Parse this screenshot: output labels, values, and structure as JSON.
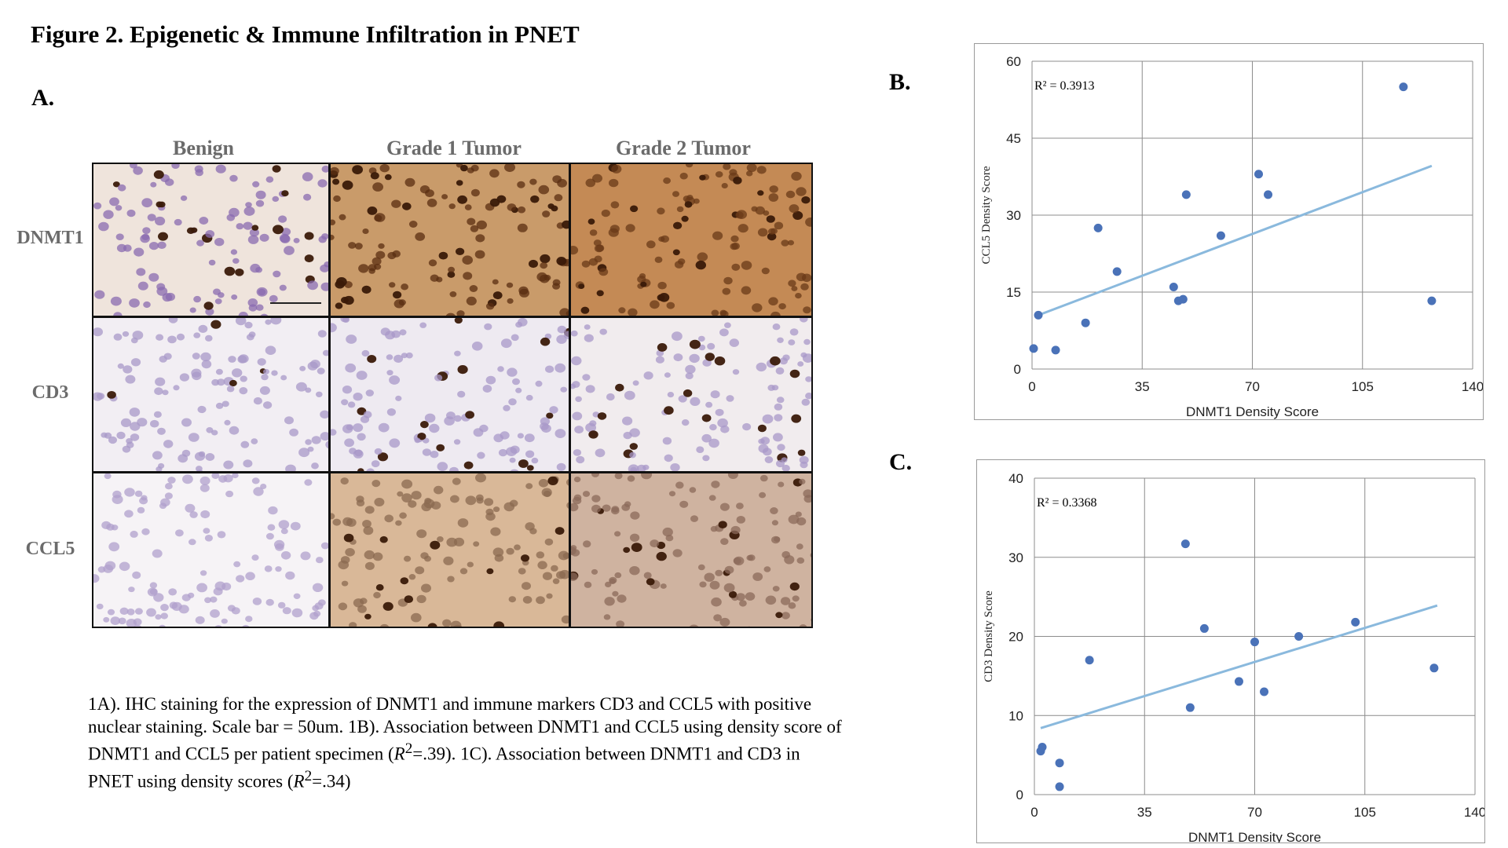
{
  "figure": {
    "title": "Figure 2. Epigenetic & Immune Infiltration in PNET",
    "panel_a_label": "A.",
    "panel_b_label": "B.",
    "panel_c_label": "C."
  },
  "ihc": {
    "columns": [
      "Benign",
      "Grade 1 Tumor",
      "Grade 2 Tumor"
    ],
    "rows": [
      "DNMT1",
      "CD3",
      "CCL5"
    ]
  },
  "caption": {
    "part1": "1A). IHC staining for the expression of DNMT1 and immune markers CD3 and CCL5 with positive nuclear staining. Scale bar = 50um. 1B). Association between DNMT1 and CCL5 using density score of DNMT1 and CCL5 per patient specimen (",
    "r_symbol": "R",
    "superscript": "2",
    "part2": "=.39). 1C). Association between DNMT1 and CD3 in PNET using density scores (",
    "part3": "=.34)"
  },
  "colors": {
    "point": "#4a72b8",
    "trendline": "#8ab9dd",
    "grid": "#8c8c8c",
    "stain_brown": "#6b3a1a",
    "stain_purple": "#8a6bb0",
    "label_grey": "#6b6b6b"
  },
  "chart_data": [
    {
      "id": "B",
      "type": "scatter",
      "xlabel": "DNMT1 Density Score",
      "ylabel": "CCL5 Density Score",
      "annotation": "R² = 0.3913",
      "xlim": [
        0,
        140
      ],
      "ylim": [
        0,
        60
      ],
      "xticks": [
        0,
        35,
        70,
        105,
        140
      ],
      "yticks": [
        0,
        15,
        30,
        45,
        60
      ],
      "grid": true,
      "trendline": {
        "x": [
          2,
          127
        ],
        "y": [
          10.5,
          39.6
        ]
      },
      "points": [
        {
          "x": 0.5,
          "y": 4
        },
        {
          "x": 2,
          "y": 10.5
        },
        {
          "x": 7.5,
          "y": 3.7
        },
        {
          "x": 17,
          "y": 9
        },
        {
          "x": 21,
          "y": 27.5
        },
        {
          "x": 27,
          "y": 19
        },
        {
          "x": 45,
          "y": 16
        },
        {
          "x": 46.5,
          "y": 13.3
        },
        {
          "x": 48,
          "y": 13.6
        },
        {
          "x": 49,
          "y": 34
        },
        {
          "x": 60,
          "y": 26
        },
        {
          "x": 72,
          "y": 38
        },
        {
          "x": 75,
          "y": 34
        },
        {
          "x": 118,
          "y": 55
        },
        {
          "x": 127,
          "y": 13.3
        }
      ]
    },
    {
      "id": "C",
      "type": "scatter",
      "xlabel": "DNMT1 Density Score",
      "ylabel": "CD3 Density Score",
      "annotation": "R² = 0.3368",
      "xlim": [
        0,
        140
      ],
      "ylim": [
        0,
        40
      ],
      "xticks": [
        0,
        35,
        70,
        105,
        140
      ],
      "yticks": [
        0,
        10,
        20,
        30,
        40
      ],
      "grid": true,
      "trendline": {
        "x": [
          2,
          128
        ],
        "y": [
          8.4,
          23.9
        ]
      },
      "points": [
        {
          "x": 2,
          "y": 5.5
        },
        {
          "x": 2.5,
          "y": 6
        },
        {
          "x": 8,
          "y": 4
        },
        {
          "x": 8,
          "y": 1
        },
        {
          "x": 17.5,
          "y": 17
        },
        {
          "x": 48,
          "y": 31.7
        },
        {
          "x": 49.5,
          "y": 11
        },
        {
          "x": 54,
          "y": 21
        },
        {
          "x": 65,
          "y": 14.3
        },
        {
          "x": 70,
          "y": 19.3
        },
        {
          "x": 73,
          "y": 13
        },
        {
          "x": 84,
          "y": 20
        },
        {
          "x": 102,
          "y": 21.8
        },
        {
          "x": 127,
          "y": 16
        }
      ]
    }
  ]
}
